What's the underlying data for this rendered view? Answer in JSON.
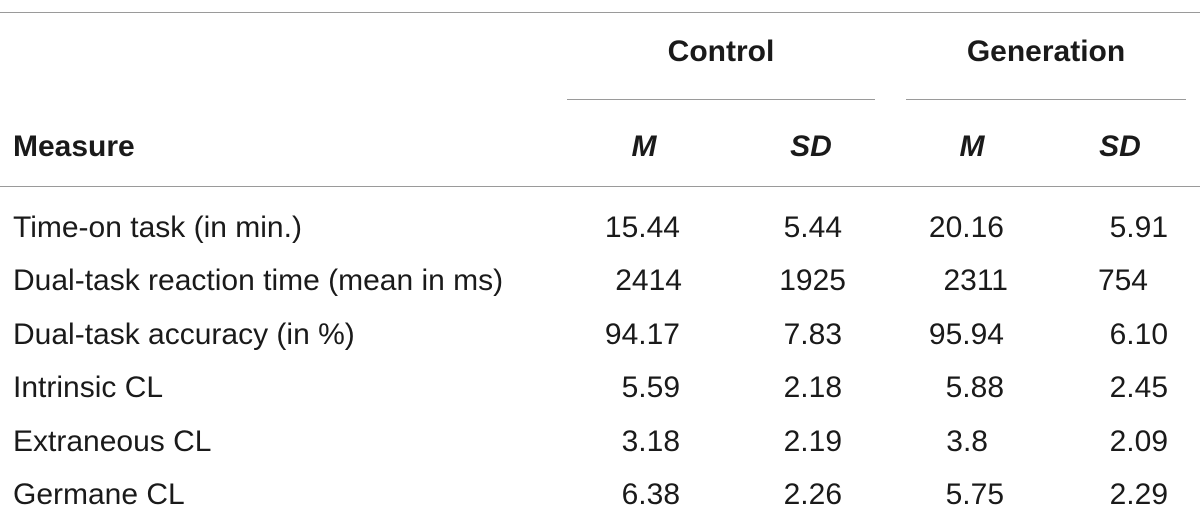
{
  "table": {
    "group_headers": [
      "Control",
      "Generation"
    ],
    "measure_header": "Measure",
    "stat_headers": [
      "M",
      "SD",
      "M",
      "SD"
    ],
    "rows": [
      {
        "label": "Time-on task (in min.)",
        "values": [
          "15.44",
          "5.44",
          "20.16",
          "5.91"
        ]
      },
      {
        "label": "Dual-task reaction time (mean in ms)",
        "values": [
          "2414",
          "1925",
          "2311",
          "754"
        ]
      },
      {
        "label": "Dual-task accuracy (in %)",
        "values": [
          "94.17",
          "7.83",
          "95.94",
          "6.10"
        ]
      },
      {
        "label": "Intrinsic CL",
        "values": [
          "5.59",
          "2.18",
          "5.88",
          "2.45"
        ]
      },
      {
        "label": "Extraneous CL",
        "values": [
          "3.18",
          "2.19",
          "3.8",
          "2.09"
        ]
      },
      {
        "label": "Germane CL",
        "values": [
          "6.38",
          "2.26",
          "5.75",
          "2.29"
        ]
      }
    ]
  }
}
